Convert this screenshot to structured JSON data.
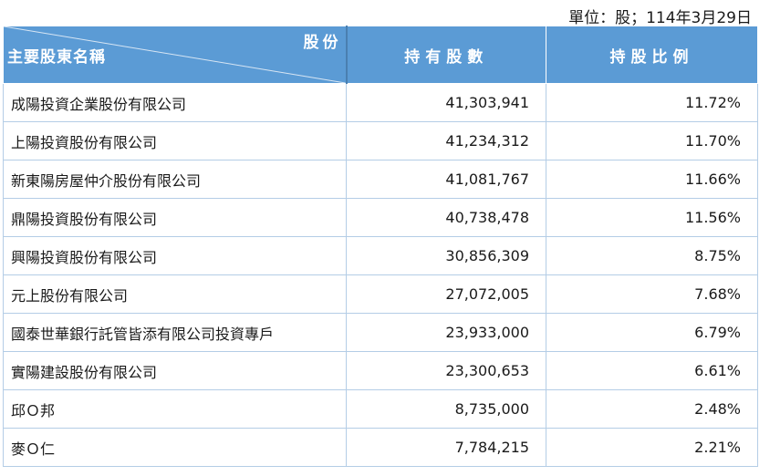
{
  "unit_note": "單位：股；114年3月29日",
  "header": {
    "diag_top_right": "股份",
    "diag_bottom_left": "主要股東名稱",
    "col_shares": "持有股數",
    "col_ratio": "持股比例"
  },
  "rows": [
    {
      "name": "成陽投資企業股份有限公司",
      "shares": "41,303,941",
      "ratio": "11.72%"
    },
    {
      "name": "上陽投資股份有限公司",
      "shares": "41,234,312",
      "ratio": "11.70%"
    },
    {
      "name": "新東陽房屋仲介股份有限公司",
      "shares": "41,081,767",
      "ratio": "11.66%"
    },
    {
      "name": "鼎陽投資股份有限公司",
      "shares": "40,738,478",
      "ratio": "11.56%"
    },
    {
      "name": "興陽投資股份有限公司",
      "shares": "30,856,309",
      "ratio": "8.75%"
    },
    {
      "name": "元上股份有限公司",
      "shares": "27,072,005",
      "ratio": "7.68%"
    },
    {
      "name": "國泰世華銀行託管皆添有限公司投資專戶",
      "shares": "23,933,000",
      "ratio": "6.79%"
    },
    {
      "name": "實陽建設股份有限公司",
      "shares": "23,300,653",
      "ratio": "6.61%"
    },
    {
      "name": "邱Ｏ邦",
      "shares": "8,735,000",
      "ratio": "2.48%"
    },
    {
      "name": "麥Ｏ仁",
      "shares": "7,784,215",
      "ratio": "2.21%"
    }
  ],
  "colors": {
    "header_bg": "#5b9bd5",
    "grid": "#b4cde6"
  }
}
